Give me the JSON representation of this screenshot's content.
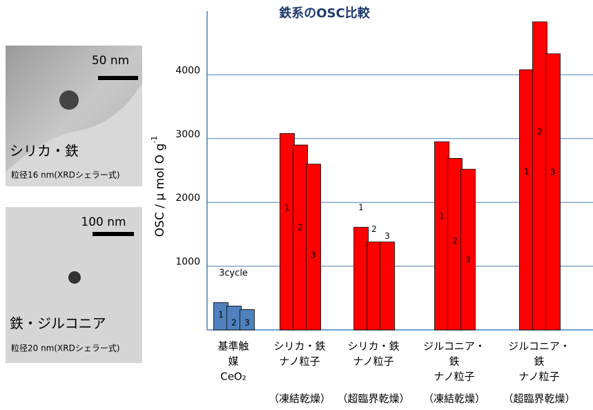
{
  "images": [
    {
      "scale": "50 nm",
      "label": "シリカ・鉄",
      "size": "粒径16 nm(XRDシェラー式)"
    },
    {
      "scale": "100 nm",
      "label": "鉄・ジルコニア",
      "size": "粒径20 nm(XRDシェラー式)"
    }
  ],
  "chart_data": {
    "type": "bar",
    "title": "鉄系のOSC比較",
    "ylabel": "OSC / μ mol O g",
    "ylabel_sup": "-1",
    "categories": [
      [
        "基準触",
        "媒",
        "CeO₂"
      ],
      [
        "シリカ・鉄",
        "ナノ粒子"
      ],
      [
        "シリカ・鉄",
        "ナノ粒子"
      ],
      [
        "ジルコニア・",
        "鉄",
        "ナノ粒子"
      ],
      [
        "ジルコニア・",
        "鉄",
        "ナノ粒子"
      ]
    ],
    "methods": [
      null,
      "（凍結乾燥）",
      "（超臨界乾燥）",
      "（凍結乾燥）",
      "（超臨界乾燥）"
    ],
    "note": "3cycle",
    "colors": [
      "#4f81bd",
      "#ff0000",
      "#ff0000",
      "#ff0000",
      "#ff0000"
    ],
    "series": [
      {
        "name": "1",
        "values": [
          430,
          3080,
          1610,
          2950,
          4080
        ]
      },
      {
        "name": "2",
        "values": [
          375,
          2900,
          1380,
          2690,
          4830
        ]
      },
      {
        "name": "3",
        "values": [
          320,
          2600,
          1380,
          2520,
          4330
        ]
      }
    ],
    "ylim": [
      0,
      5000
    ],
    "yticks": [
      1000,
      2000,
      3000,
      4000
    ],
    "grid": true
  }
}
